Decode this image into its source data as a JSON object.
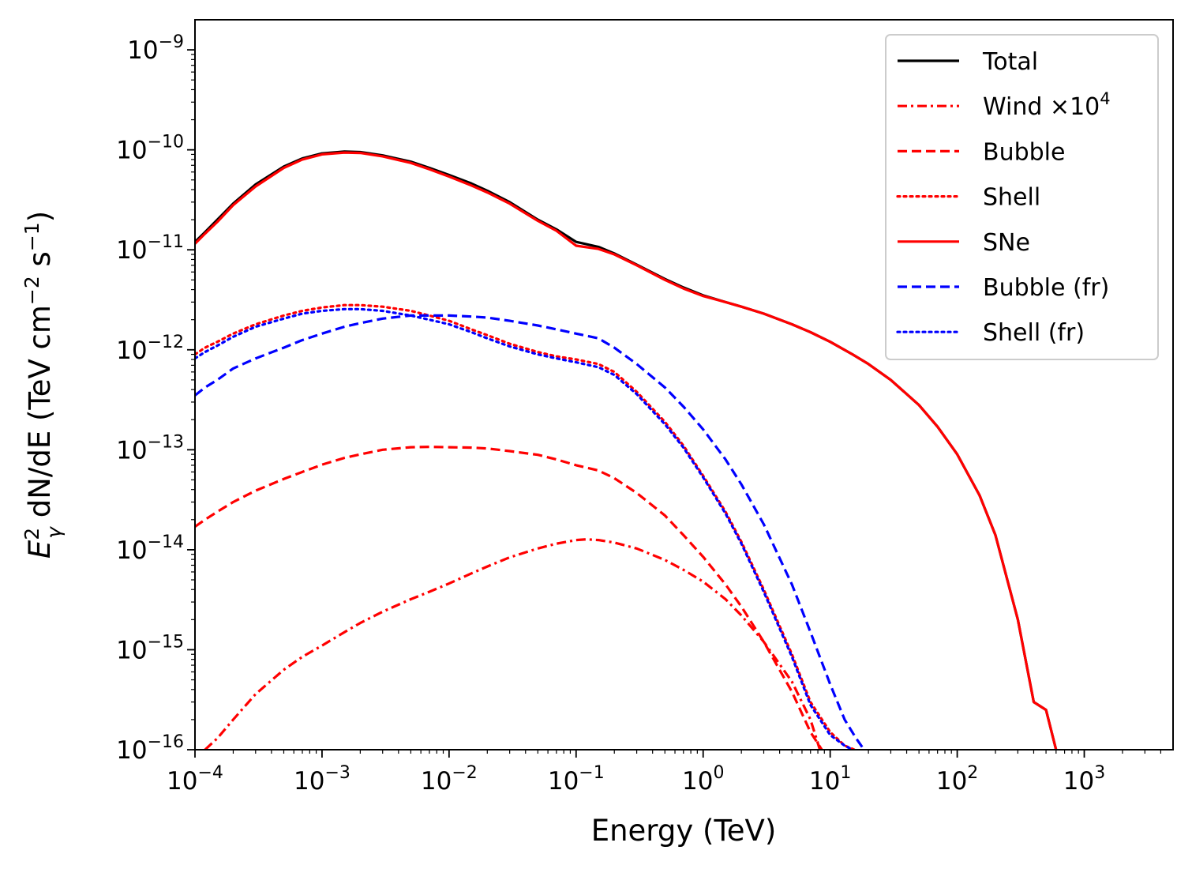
{
  "chart_data": {
    "type": "line",
    "title": "",
    "xlabel": "Energy (TeV)",
    "ylabel": {
      "base": "E",
      "sup": "2",
      "sub": "γ",
      "middle": " dN/dE (TeV cm",
      "unit_exp1": "−2",
      "unit_s": " s",
      "unit_exp2": "−1",
      "close": ")"
    },
    "xscale": "log",
    "yscale": "log",
    "xlim": [
      0.0001,
      5000
    ],
    "ylim": [
      1e-16,
      2e-09
    ],
    "x_ticks": [
      {
        "value": 0.0001,
        "base": "10",
        "exp": "−4"
      },
      {
        "value": 0.001,
        "base": "10",
        "exp": "−3"
      },
      {
        "value": 0.01,
        "base": "10",
        "exp": "−2"
      },
      {
        "value": 0.1,
        "base": "10",
        "exp": "−1"
      },
      {
        "value": 1,
        "base": "10",
        "exp": "0"
      },
      {
        "value": 10,
        "base": "10",
        "exp": "1"
      },
      {
        "value": 100,
        "base": "10",
        "exp": "2"
      },
      {
        "value": 1000,
        "base": "10",
        "exp": "3"
      }
    ],
    "y_ticks": [
      {
        "value": 1e-16,
        "base": "10",
        "exp": "−16"
      },
      {
        "value": 1e-15,
        "base": "10",
        "exp": "−15"
      },
      {
        "value": 1e-14,
        "base": "10",
        "exp": "−14"
      },
      {
        "value": 1e-13,
        "base": "10",
        "exp": "−13"
      },
      {
        "value": 1e-12,
        "base": "10",
        "exp": "−12"
      },
      {
        "value": 1e-11,
        "base": "10",
        "exp": "−11"
      },
      {
        "value": 1e-10,
        "base": "10",
        "exp": "−10"
      },
      {
        "value": 1e-09,
        "base": "10",
        "exp": "−9"
      }
    ],
    "legend_position": "top-right",
    "series": [
      {
        "name": "Total",
        "name_sup": "",
        "color": "#000000",
        "style": "solid",
        "width": 3.2,
        "x": [
          0.0001,
          0.00012,
          0.00015,
          0.0002,
          0.0003,
          0.0005,
          0.0007,
          0.001,
          0.0015,
          0.002,
          0.003,
          0.005,
          0.007,
          0.01,
          0.015,
          0.02,
          0.03,
          0.05,
          0.07,
          0.1,
          0.15,
          0.2,
          0.3,
          0.5,
          0.7,
          1,
          1.5,
          2,
          3,
          5,
          7,
          10,
          15,
          20,
          30,
          50,
          70,
          100,
          150,
          200,
          300,
          400,
          500,
          600
        ],
        "y": [
          1.2e-11,
          1.5e-11,
          2e-11,
          2.9e-11,
          4.5e-11,
          6.8e-11,
          8.2e-11,
          9.2e-11,
          9.6e-11,
          9.5e-11,
          8.8e-11,
          7.6e-11,
          6.6e-11,
          5.6e-11,
          4.6e-11,
          3.9e-11,
          3e-11,
          2e-11,
          1.6e-11,
          1.2e-11,
          1.07e-11,
          9.2e-12,
          7.1e-12,
          5.1e-12,
          4.2e-12,
          3.5e-12,
          3e-12,
          2.7e-12,
          2.3e-12,
          1.8e-12,
          1.5e-12,
          1.2e-12,
          9e-13,
          7.2e-13,
          5e-13,
          2.8e-13,
          1.7e-13,
          9e-14,
          3.5e-14,
          1.4e-14,
          2e-15,
          3e-16,
          2.5e-16,
          1e-16
        ]
      },
      {
        "name": "Wind ×10",
        "name_sup": "4",
        "color": "#ff0000",
        "style": "dashdot",
        "width": 3.2,
        "x": [
          0.00012,
          0.00015,
          0.0002,
          0.0003,
          0.0005,
          0.0007,
          0.001,
          0.0015,
          0.002,
          0.003,
          0.005,
          0.007,
          0.01,
          0.015,
          0.02,
          0.03,
          0.05,
          0.07,
          0.1,
          0.12,
          0.15,
          0.2,
          0.3,
          0.5,
          0.7,
          1,
          1.5,
          2,
          3,
          5,
          7,
          8.3
        ],
        "y": [
          1e-16,
          1.3e-16,
          2e-16,
          3.6e-16,
          6.3e-16,
          8.5e-16,
          1.1e-15,
          1.5e-15,
          1.85e-15,
          2.4e-15,
          3.2e-15,
          3.8e-15,
          4.6e-15,
          5.8e-15,
          6.8e-15,
          8.4e-15,
          1.03e-14,
          1.15e-14,
          1.25e-14,
          1.27e-14,
          1.25e-14,
          1.18e-14,
          1.03e-14,
          7.9e-15,
          6.3e-15,
          4.8e-15,
          3.2e-15,
          2.2e-15,
          1.2e-15,
          4.8e-16,
          2e-16,
          1e-16
        ]
      },
      {
        "name": "Bubble",
        "name_sup": "",
        "color": "#ff0000",
        "style": "dashed",
        "width": 3.2,
        "x": [
          0.0001,
          0.00012,
          0.00015,
          0.0002,
          0.0003,
          0.0005,
          0.0007,
          0.001,
          0.0015,
          0.002,
          0.003,
          0.005,
          0.007,
          0.01,
          0.015,
          0.02,
          0.03,
          0.05,
          0.07,
          0.1,
          0.15,
          0.2,
          0.3,
          0.5,
          0.7,
          1,
          1.5,
          2,
          3,
          5,
          7,
          8.6
        ],
        "y": [
          1.7e-14,
          2e-14,
          2.4e-14,
          3e-14,
          3.9e-14,
          5.1e-14,
          6e-14,
          7.1e-14,
          8.3e-14,
          9e-14,
          1e-13,
          1.06e-13,
          1.07e-13,
          1.06e-13,
          1.05e-13,
          1.03e-13,
          9.7e-14,
          8.9e-14,
          8e-14,
          7e-14,
          6.2e-14,
          5.2e-14,
          3.7e-14,
          2.2e-14,
          1.4e-14,
          8.5e-15,
          4.5e-15,
          2.7e-15,
          1.2e-15,
          3.8e-16,
          1.5e-16,
          1e-16
        ]
      },
      {
        "name": "Shell",
        "name_sup": "",
        "color": "#ff0000",
        "style": "dotted",
        "width": 3.2,
        "x": [
          0.0001,
          0.00012,
          0.00015,
          0.0002,
          0.0003,
          0.0005,
          0.0007,
          0.001,
          0.0015,
          0.002,
          0.003,
          0.005,
          0.007,
          0.01,
          0.015,
          0.02,
          0.03,
          0.05,
          0.07,
          0.1,
          0.15,
          0.2,
          0.3,
          0.5,
          0.7,
          1,
          1.5,
          2,
          3,
          5,
          7,
          10,
          13,
          15.5
        ],
        "y": [
          9e-13,
          1.05e-12,
          1.2e-12,
          1.45e-12,
          1.8e-12,
          2.2e-12,
          2.45e-12,
          2.65e-12,
          2.8e-12,
          2.8e-12,
          2.7e-12,
          2.45e-12,
          2.2e-12,
          1.95e-12,
          1.6e-12,
          1.4e-12,
          1.15e-12,
          9.5e-13,
          8.6e-13,
          8e-13,
          7.2e-13,
          6e-13,
          3.8e-13,
          1.9e-13,
          1.1e-13,
          5.5e-14,
          2.4e-14,
          1.2e-14,
          4e-15,
          9e-16,
          3e-16,
          1.5e-16,
          1.1e-16,
          1e-16
        ]
      },
      {
        "name": "SNe",
        "name_sup": "",
        "color": "#ff0000",
        "style": "solid",
        "width": 3.2,
        "x": [
          0.0001,
          0.00012,
          0.00015,
          0.0002,
          0.0003,
          0.0005,
          0.0007,
          0.001,
          0.0015,
          0.002,
          0.003,
          0.005,
          0.007,
          0.01,
          0.015,
          0.02,
          0.03,
          0.05,
          0.07,
          0.1,
          0.15,
          0.2,
          0.3,
          0.5,
          0.7,
          1,
          1.5,
          2,
          3,
          5,
          7,
          10,
          15,
          20,
          30,
          50,
          70,
          100,
          150,
          200,
          300,
          400,
          500,
          600
        ],
        "y": [
          1.15e-11,
          1.45e-11,
          1.9e-11,
          2.8e-11,
          4.3e-11,
          6.6e-11,
          8e-11,
          9e-11,
          9.4e-11,
          9.3e-11,
          8.6e-11,
          7.4e-11,
          6.4e-11,
          5.4e-11,
          4.4e-11,
          3.75e-11,
          2.9e-11,
          1.95e-11,
          1.55e-11,
          1.1e-11,
          1.02e-11,
          9e-12,
          7e-12,
          5e-12,
          4.1e-12,
          3.45e-12,
          3e-12,
          2.7e-12,
          2.3e-12,
          1.8e-12,
          1.5e-12,
          1.2e-12,
          9e-13,
          7.2e-13,
          5e-13,
          2.8e-13,
          1.7e-13,
          9e-14,
          3.5e-14,
          1.4e-14,
          2e-15,
          3e-16,
          2.5e-16,
          1e-16
        ]
      },
      {
        "name": "Bubble (fr)",
        "name_sup": "",
        "color": "#0000ff",
        "style": "dashed",
        "width": 3.2,
        "x": [
          0.0001,
          0.00012,
          0.00015,
          0.0002,
          0.0003,
          0.0005,
          0.0007,
          0.001,
          0.0015,
          0.002,
          0.003,
          0.005,
          0.007,
          0.01,
          0.015,
          0.02,
          0.03,
          0.05,
          0.07,
          0.1,
          0.15,
          0.2,
          0.3,
          0.5,
          0.7,
          1,
          1.5,
          2,
          3,
          5,
          7,
          10,
          13,
          16,
          18.5
        ],
        "y": [
          3.5e-13,
          4.2e-13,
          5e-13,
          6.5e-13,
          8.2e-13,
          1.05e-12,
          1.25e-12,
          1.45e-12,
          1.7e-12,
          1.85e-12,
          2.05e-12,
          2.2e-12,
          2.2e-12,
          2.2e-12,
          2.15e-12,
          2.1e-12,
          1.95e-12,
          1.75e-12,
          1.6e-12,
          1.45e-12,
          1.3e-12,
          1.05e-12,
          7.2e-13,
          4.2e-13,
          2.7e-13,
          1.6e-13,
          8e-14,
          4.5e-14,
          1.8e-14,
          4.5e-15,
          1.5e-15,
          4.5e-16,
          2e-16,
          1.3e-16,
          1e-16
        ]
      },
      {
        "name": "Shell (fr)",
        "name_sup": "",
        "color": "#0000ff",
        "style": "dotted",
        "width": 3.2,
        "x": [
          0.0001,
          0.00012,
          0.00015,
          0.0002,
          0.0003,
          0.0005,
          0.0007,
          0.001,
          0.0015,
          0.002,
          0.003,
          0.005,
          0.007,
          0.01,
          0.015,
          0.02,
          0.03,
          0.05,
          0.07,
          0.1,
          0.15,
          0.2,
          0.3,
          0.5,
          0.7,
          1,
          1.5,
          2,
          3,
          5,
          7,
          10,
          13,
          15
        ],
        "y": [
          8.2e-13,
          9.5e-13,
          1.1e-12,
          1.35e-12,
          1.7e-12,
          2.05e-12,
          2.3e-12,
          2.45e-12,
          2.55e-12,
          2.55e-12,
          2.45e-12,
          2.2e-12,
          2e-12,
          1.8e-12,
          1.5e-12,
          1.3e-12,
          1.08e-12,
          9e-13,
          8.2e-13,
          7.5e-13,
          6.7e-13,
          5.6e-13,
          3.6e-13,
          1.8e-13,
          1.05e-13,
          5.3e-14,
          2.3e-14,
          1.15e-14,
          3.8e-15,
          8.5e-16,
          2.8e-16,
          1.4e-16,
          1.1e-16,
          1e-16
        ]
      }
    ]
  }
}
